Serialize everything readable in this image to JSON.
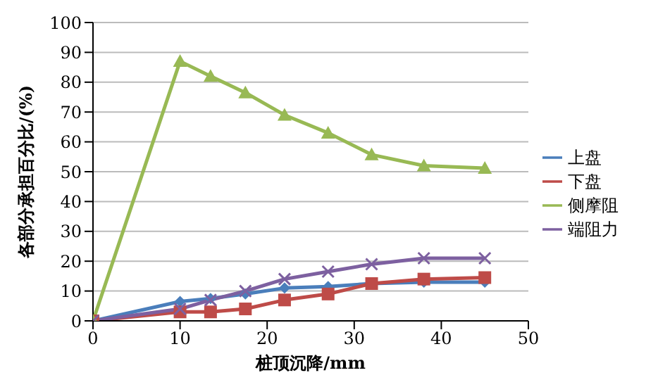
{
  "chart_data": {
    "type": "line",
    "xlabel": "桩顶沉降/mm",
    "ylabel": "各部分承担百分比/(%)",
    "x": [
      0,
      10,
      13.5,
      17.5,
      22,
      27,
      32,
      38,
      45
    ],
    "series": [
      {
        "name": "上盘",
        "color": "#4a7ebb",
        "marker": "diamond",
        "values": [
          0,
          6.5,
          7.5,
          9,
          11,
          11.5,
          12.5,
          13,
          13
        ]
      },
      {
        "name": "下盘",
        "color": "#be4b48",
        "marker": "square",
        "values": [
          0,
          3,
          3,
          4,
          7,
          9,
          12.5,
          14,
          14.5
        ]
      },
      {
        "name": "侧摩阻",
        "color": "#98b954",
        "marker": "triangle",
        "values": [
          0,
          87,
          82,
          76.5,
          69,
          63,
          55.7,
          52,
          51.2
        ]
      },
      {
        "name": "端阻力",
        "color": "#7d60a0",
        "marker": "cross",
        "values": [
          0,
          4,
          7,
          10,
          14,
          16.5,
          19,
          21,
          21
        ]
      }
    ],
    "xlim": [
      0,
      50
    ],
    "xticks": [
      0,
      10,
      20,
      30,
      40,
      50
    ],
    "ylim": [
      0,
      100
    ],
    "yticks": [
      0,
      10,
      20,
      30,
      40,
      50,
      60,
      70,
      80,
      90,
      100
    ],
    "grid": "y",
    "legend": "right"
  }
}
